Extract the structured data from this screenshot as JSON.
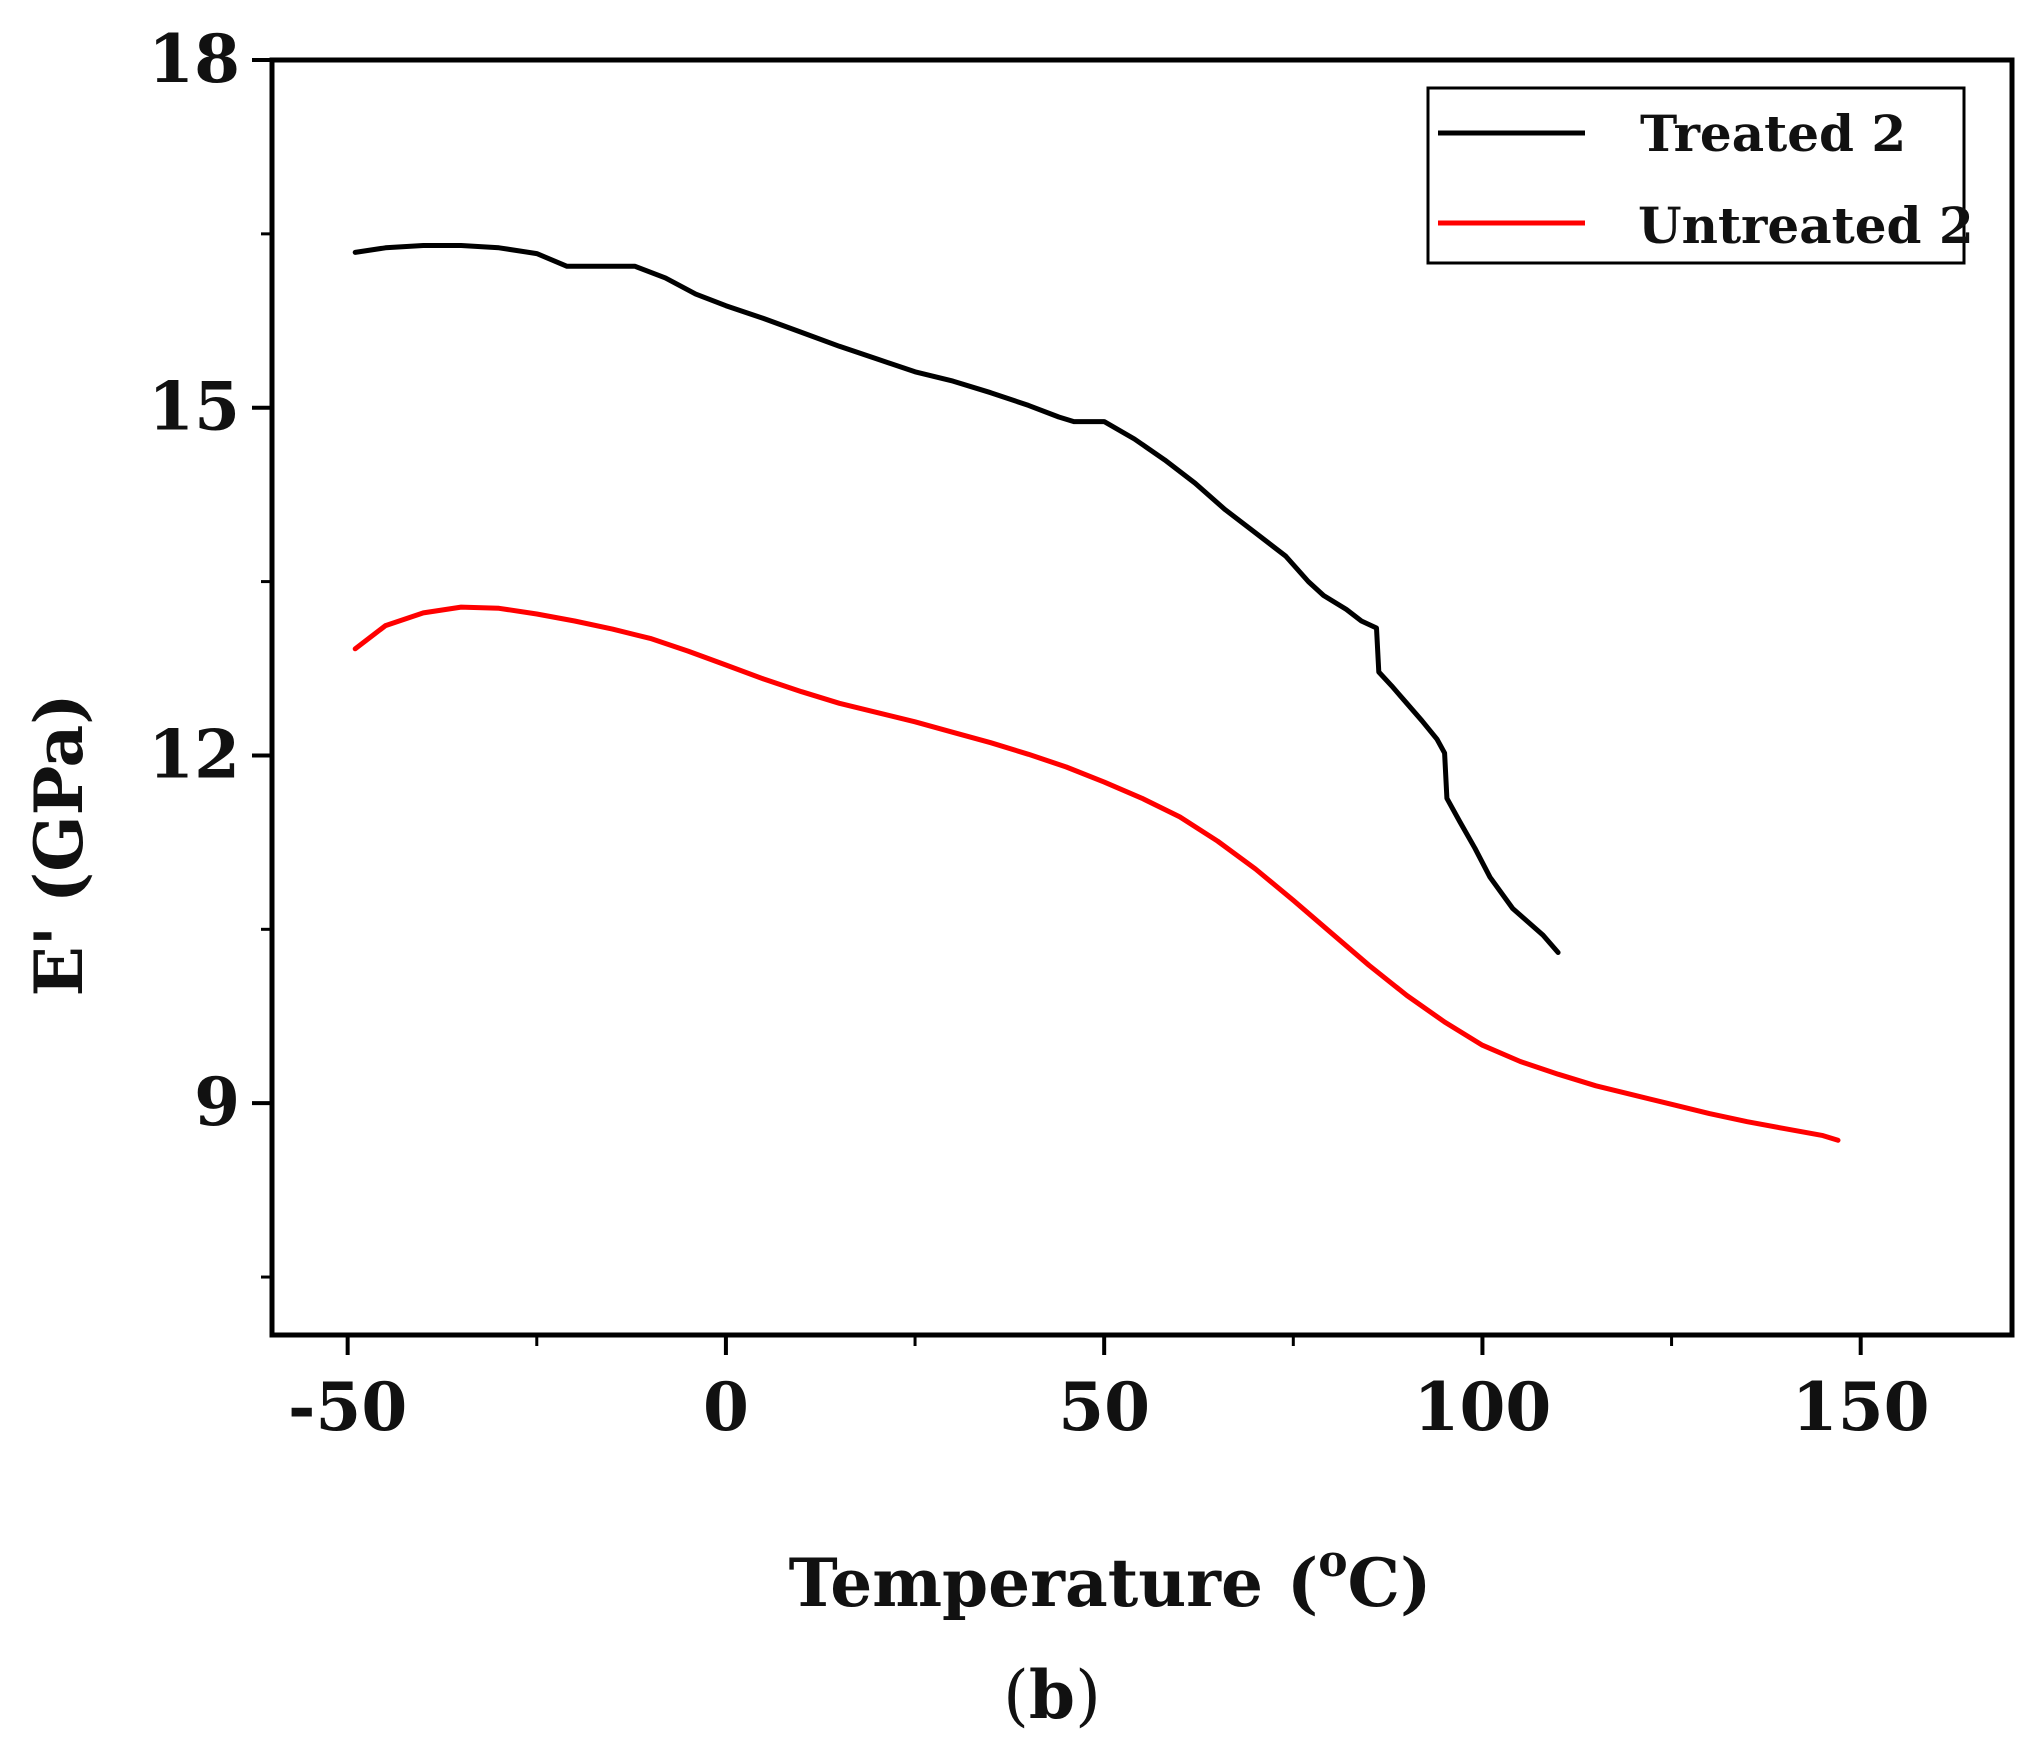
{
  "chart_data": {
    "type": "line",
    "title": "",
    "xlabel": "Temperature",
    "xlabel_unit_open": "(",
    "xlabel_unit_sup": "o",
    "xlabel_unit_close": "C)",
    "ylabel": "E' (GPa)",
    "panel_label_open": "(",
    "panel_label_bold": "b",
    "panel_label_close": ")",
    "xlim": [
      -60,
      170
    ],
    "ylim": [
      7.0,
      18.0
    ],
    "x_major_ticks": [
      -50,
      0,
      50,
      100,
      150
    ],
    "x_minor_ticks": [
      -25,
      25,
      75,
      125
    ],
    "x_tick_labels": [
      "-50",
      "0",
      "50",
      "100",
      "150"
    ],
    "y_major_ticks": [
      9,
      12,
      15,
      18
    ],
    "y_minor_ticks": [
      7.5,
      10.5,
      13.5,
      16.5
    ],
    "y_tick_labels": [
      "9",
      "12",
      "15",
      "18"
    ],
    "grid": false,
    "legend_position": "top-right",
    "series": [
      {
        "name": "Treated 2",
        "color": "#000000",
        "x": [
          -49,
          -45,
          -40,
          -35,
          -30,
          -25,
          -21,
          -17,
          -12,
          -8,
          -4,
          0,
          5,
          10,
          15,
          20,
          25,
          30,
          35,
          40,
          44,
          46,
          48,
          50,
          54,
          58,
          62,
          66,
          70,
          74,
          77,
          79,
          82,
          84,
          86,
          86.3,
          88,
          90,
          92,
          94,
          95,
          95.3,
          97,
          99,
          101,
          104,
          108,
          110
        ],
        "y": [
          16.34,
          16.38,
          16.4,
          16.4,
          16.38,
          16.33,
          16.22,
          16.22,
          16.22,
          16.12,
          15.98,
          15.88,
          15.77,
          15.65,
          15.53,
          15.42,
          15.31,
          15.23,
          15.13,
          15.02,
          14.92,
          14.88,
          14.88,
          14.88,
          14.73,
          14.55,
          14.35,
          14.12,
          13.92,
          13.72,
          13.5,
          13.38,
          13.26,
          13.16,
          13.1,
          12.72,
          12.6,
          12.45,
          12.3,
          12.14,
          12.02,
          11.63,
          11.43,
          11.2,
          10.95,
          10.68,
          10.45,
          10.3
        ]
      },
      {
        "name": "Untreated 2",
        "color": "#ff0000",
        "x": [
          -49,
          -45,
          -40,
          -35,
          -30,
          -25,
          -20,
          -15,
          -10,
          -5,
          0,
          5,
          10,
          15,
          20,
          25,
          30,
          35,
          40,
          45,
          50,
          55,
          60,
          65,
          70,
          75,
          80,
          85,
          90,
          95,
          100,
          105,
          110,
          115,
          120,
          125,
          130,
          135,
          140,
          145,
          147
        ],
        "y": [
          12.92,
          13.12,
          13.23,
          13.28,
          13.27,
          13.22,
          13.16,
          13.09,
          13.01,
          12.9,
          12.78,
          12.66,
          12.55,
          12.45,
          12.37,
          12.29,
          12.2,
          12.11,
          12.01,
          11.9,
          11.77,
          11.63,
          11.47,
          11.26,
          11.02,
          10.75,
          10.47,
          10.19,
          9.93,
          9.7,
          9.5,
          9.36,
          9.25,
          9.15,
          9.07,
          8.99,
          8.91,
          8.84,
          8.78,
          8.72,
          8.68
        ]
      }
    ]
  }
}
